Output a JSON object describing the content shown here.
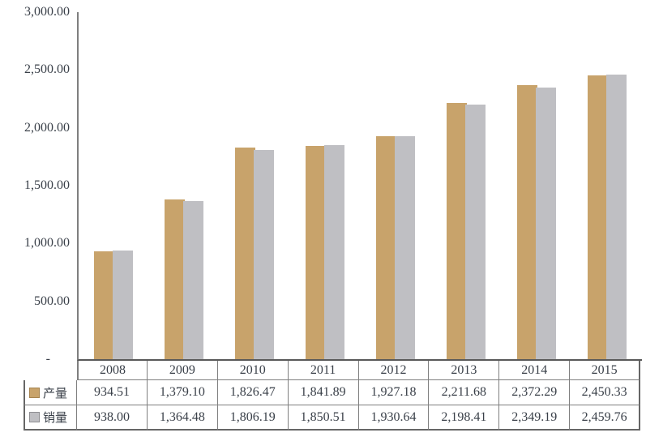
{
  "chart_data": {
    "type": "bar",
    "title": "",
    "xlabel": "",
    "ylabel": "",
    "categories": [
      "2008",
      "2009",
      "2010",
      "2011",
      "2012",
      "2013",
      "2014",
      "2015"
    ],
    "series": [
      {
        "name": "产量",
        "color": "#c8a36b",
        "values": [
          934.51,
          1379.1,
          1826.47,
          1841.89,
          1927.18,
          2211.68,
          2372.29,
          2450.33
        ]
      },
      {
        "name": "销量",
        "color": "#bfbfc3",
        "values": [
          938.0,
          1364.48,
          1806.19,
          1850.51,
          1930.64,
          2198.41,
          2349.19,
          2459.76
        ]
      }
    ],
    "ylim": [
      0,
      3000
    ],
    "y_ticks": [
      {
        "value": 3000,
        "label": "3,000.00"
      },
      {
        "value": 2500,
        "label": "2,500.00"
      },
      {
        "value": 2000,
        "label": "2,000.00"
      },
      {
        "value": 1500,
        "label": "1,500.00"
      },
      {
        "value": 1000,
        "label": "1,000.00"
      },
      {
        "value": 500,
        "label": "500.00"
      },
      {
        "value": 0,
        "label": "-"
      }
    ],
    "grid": false,
    "legend_position": "table-left-column"
  },
  "table": {
    "years": [
      "2008",
      "2009",
      "2010",
      "2011",
      "2012",
      "2013",
      "2014",
      "2015"
    ],
    "rows": [
      {
        "label": "产量",
        "swatch_color": "#c8a36b",
        "values": [
          "934.51",
          "1,379.10",
          "1,826.47",
          "1,841.89",
          "1,927.18",
          "2,211.68",
          "2,372.29",
          "2,450.33"
        ]
      },
      {
        "label": "销量",
        "swatch_color": "#bfbfc3",
        "values": [
          "938.00",
          "1,364.48",
          "1,806.19",
          "1,850.51",
          "1,930.64",
          "2,198.41",
          "2,349.19",
          "2,459.76"
        ]
      }
    ]
  },
  "colors": {
    "series_production": "#c8a36b",
    "series_sales": "#bfbfc3",
    "axis_line": "#7f7f7f",
    "table_border": "#7f7f7f",
    "text": "#3a4049"
  }
}
